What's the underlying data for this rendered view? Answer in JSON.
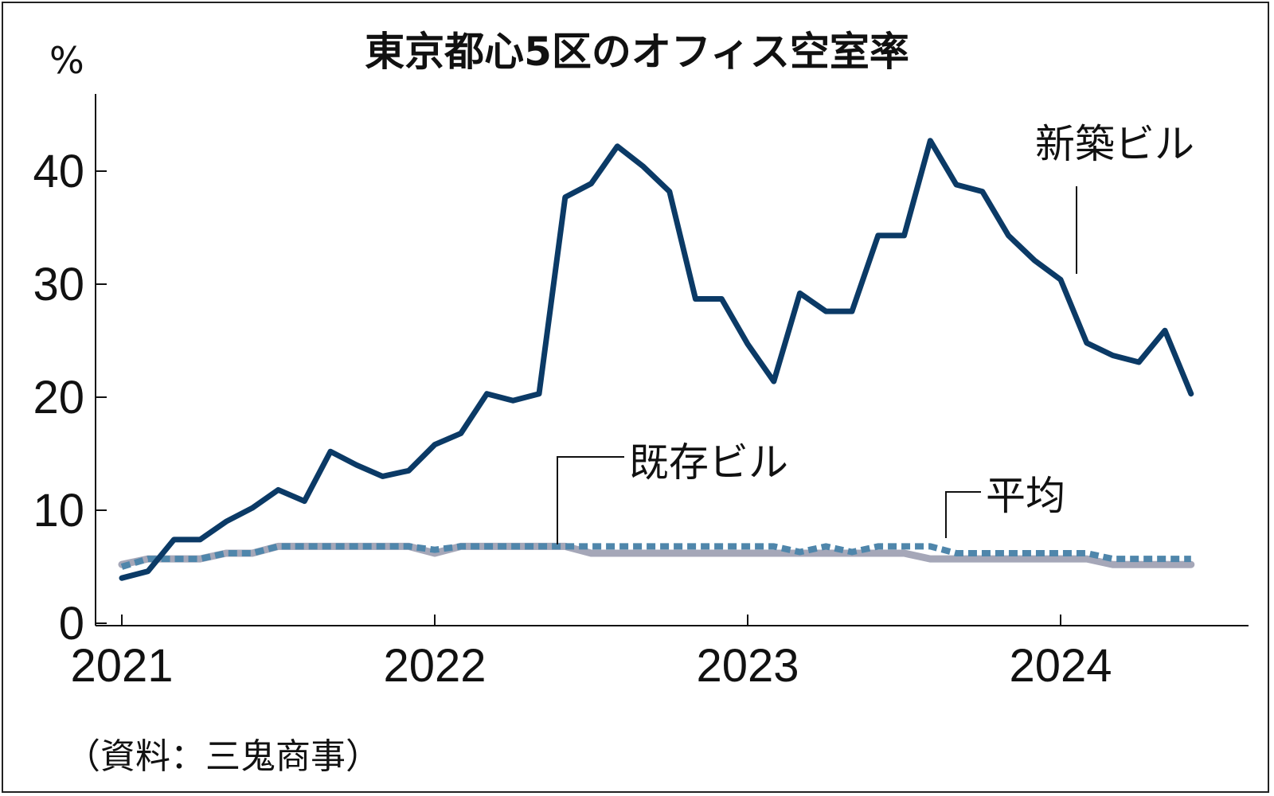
{
  "chart_data": {
    "type": "line",
    "title": "東京都心5区のオフィス空室率",
    "ylabel": "%",
    "source": "（資料：三鬼商事）",
    "ylim": [
      0,
      45
    ],
    "yticks": [
      0,
      10,
      20,
      30,
      40
    ],
    "ytick_labels": [
      "0",
      "10",
      "20",
      "30",
      "40"
    ],
    "xticks": [
      "2021",
      "2022",
      "2023",
      "2024"
    ],
    "x_unit": "month index from Jan 2021",
    "x": [
      0,
      1,
      2,
      3,
      4,
      5,
      6,
      7,
      8,
      9,
      10,
      11,
      12,
      13,
      14,
      15,
      16,
      17,
      18,
      19,
      20,
      21,
      22,
      23,
      24,
      25,
      26,
      27,
      28,
      29,
      30,
      31,
      32,
      33,
      34,
      35,
      36,
      37,
      38,
      39,
      40,
      41
    ],
    "series": [
      {
        "name": "新築ビル",
        "color": "#0b3a66",
        "style": "solid",
        "values": [
          4.0,
          4.6,
          7.4,
          7.4,
          9.0,
          10.2,
          11.8,
          10.8,
          15.2,
          14.0,
          13.0,
          13.5,
          15.8,
          16.8,
          20.3,
          19.7,
          20.3,
          37.7,
          38.9,
          42.2,
          40.4,
          38.2,
          28.7,
          28.7,
          24.7,
          21.4,
          29.2,
          27.6,
          27.6,
          34.3,
          34.3,
          42.7,
          38.8,
          38.2,
          34.3,
          32.1,
          30.4,
          24.8,
          23.7,
          23.1,
          25.9,
          20.3
        ]
      },
      {
        "name": "平均",
        "color": "#4f86ab",
        "style": "dashed",
        "values": [
          5.0,
          5.7,
          5.7,
          5.7,
          6.2,
          6.2,
          6.8,
          6.8,
          6.8,
          6.8,
          6.8,
          6.8,
          6.5,
          6.8,
          6.8,
          6.8,
          6.8,
          6.8,
          6.8,
          6.8,
          6.8,
          6.8,
          6.8,
          6.8,
          6.8,
          6.8,
          6.3,
          6.8,
          6.3,
          6.8,
          6.8,
          6.8,
          6.2,
          6.2,
          6.2,
          6.2,
          6.2,
          6.2,
          5.7,
          5.7,
          5.7,
          5.7
        ]
      },
      {
        "name": "既存ビル",
        "color": "#a5a7b8",
        "style": "solid",
        "values": [
          5.2,
          5.7,
          5.7,
          5.7,
          6.2,
          6.2,
          6.8,
          6.8,
          6.8,
          6.8,
          6.8,
          6.8,
          6.2,
          6.8,
          6.8,
          6.8,
          6.8,
          6.8,
          6.2,
          6.2,
          6.2,
          6.2,
          6.2,
          6.2,
          6.2,
          6.2,
          6.2,
          6.2,
          6.2,
          6.2,
          6.2,
          5.7,
          5.7,
          5.7,
          5.7,
          5.7,
          5.7,
          5.7,
          5.2,
          5.2,
          5.2,
          5.2
        ]
      }
    ],
    "annotations": [
      "新築ビル",
      "既存ビル",
      "平均"
    ],
    "grid": false
  }
}
